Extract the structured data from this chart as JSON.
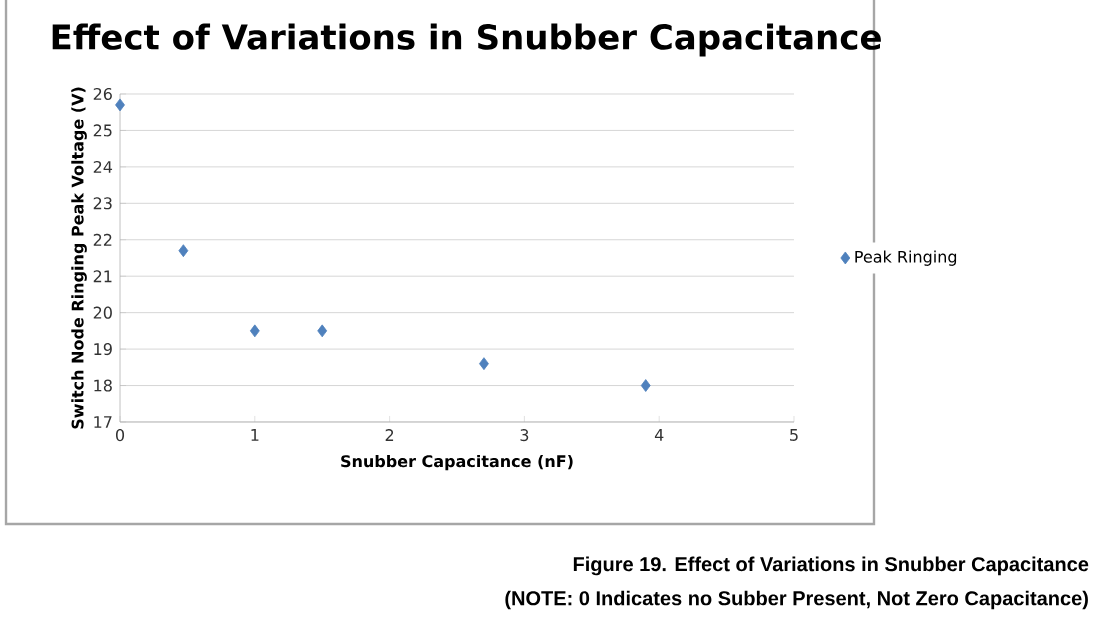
{
  "chart_data": {
    "type": "scatter",
    "title": "Effect of Variations in Snubber Capacitance",
    "xlabel": "Snubber Capacitance (nF)",
    "ylabel": "Switch Node Ringing Peak Voltage (V)",
    "x": [
      0,
      0.47,
      1,
      1.5,
      2.7,
      3.9
    ],
    "series": [
      {
        "name": "Peak Ringing",
        "color": "#4f81bd",
        "values": [
          25.7,
          21.7,
          19.5,
          19.5,
          18.6,
          18.0
        ]
      }
    ],
    "xlim": [
      0,
      5
    ],
    "xticks": [
      0,
      1,
      2,
      3,
      4,
      5
    ],
    "ylim": [
      17,
      26
    ],
    "yticks": [
      17,
      18,
      19,
      20,
      21,
      22,
      23,
      24,
      25,
      26
    ],
    "grid": "y",
    "legend": "right",
    "marker": "diamond",
    "annotations": [
      "Figure 19.   Effect of Variations in Snubber Capacitance",
      "(NOTE:  0 Indicates no Subber Present, Not Zero Capacitance)"
    ]
  }
}
